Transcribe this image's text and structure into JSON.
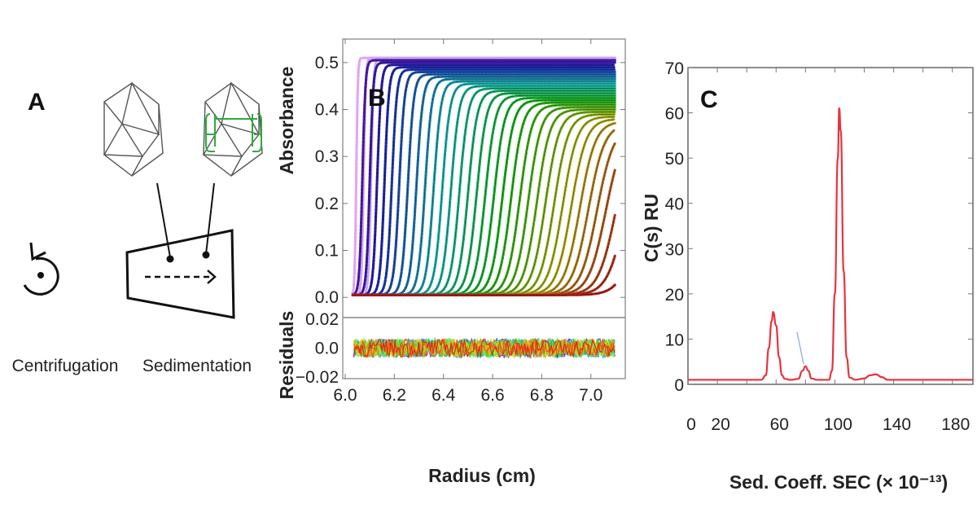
{
  "panel_a": {
    "label": "A",
    "captions": [
      "Centrifugation",
      "Sedimentation"
    ],
    "icons": [
      "rotation-icon",
      "icosahedron-capsid-empty-icon",
      "icosahedron-capsid-genome-icon",
      "sedimentation-cell-icon"
    ],
    "genome_color": "#2eaa3c"
  },
  "chart_data": [
    {
      "type": "line",
      "panel_label": "B",
      "xlabel": "Radius (cm)",
      "ylabel": "Absorbance",
      "xlim": [
        5.99,
        7.14
      ],
      "ylim": [
        -0.043,
        0.55
      ],
      "xticks": [
        "6.0",
        "6.2",
        "6.4",
        "6.6",
        "6.8",
        "7.0"
      ],
      "xtick_values": [
        6.0,
        6.2,
        6.4,
        6.6,
        6.8,
        7.0
      ],
      "yticks": [
        "0.0",
        "0.1",
        "0.2",
        "0.3",
        "0.4",
        "0.5"
      ],
      "ytick_values": [
        0,
        0.1,
        0.2,
        0.3,
        0.4,
        0.5
      ],
      "meniscus_radius": 6.03,
      "cell_bottom_radius": 7.1,
      "baseline": 0.005,
      "color_scale": "rainbow purple-to-red (early to late scans)",
      "scans": [
        [
          6.045,
          0.51
        ],
        [
          6.075,
          0.51
        ],
        [
          6.105,
          0.51
        ],
        [
          6.07,
          0.505
        ],
        [
          6.1,
          0.5
        ],
        [
          6.13,
          0.495
        ],
        [
          6.16,
          0.49
        ],
        [
          6.19,
          0.485
        ],
        [
          6.22,
          0.48
        ],
        [
          6.255,
          0.475
        ],
        [
          6.29,
          0.47
        ],
        [
          6.325,
          0.465
        ],
        [
          6.36,
          0.46
        ],
        [
          6.395,
          0.455
        ],
        [
          6.43,
          0.45
        ],
        [
          6.465,
          0.445
        ],
        [
          6.5,
          0.44
        ],
        [
          6.535,
          0.435
        ],
        [
          6.57,
          0.43
        ],
        [
          6.605,
          0.425
        ],
        [
          6.64,
          0.42
        ],
        [
          6.675,
          0.415
        ],
        [
          6.71,
          0.41
        ],
        [
          6.745,
          0.405
        ],
        [
          6.78,
          0.4
        ],
        [
          6.815,
          0.395
        ],
        [
          6.85,
          0.39
        ],
        [
          6.885,
          0.385
        ],
        [
          6.92,
          0.38
        ],
        [
          6.955,
          0.375
        ],
        [
          6.99,
          0.37
        ],
        [
          7.025,
          0.365
        ],
        [
          7.06,
          0.36
        ],
        [
          7.1,
          0.355
        ],
        [
          7.14,
          0.35
        ],
        [
          7.2,
          0.35
        ]
      ],
      "residuals": {
        "ylabel": "Residuals",
        "ylim": [
          -0.021,
          0.021
        ],
        "yticks": [
          "0.02",
          "0.0",
          "−0.02"
        ],
        "ytick_values": [
          0.02,
          0,
          -0.02
        ],
        "noise_amplitude": 0.008
      }
    },
    {
      "type": "line",
      "panel_label": "C",
      "xlabel": "Sed. Coeff. SEC (× 10⁻¹³)",
      "ylabel": "C(s) RU",
      "xlim": [
        0,
        194
      ],
      "ylim": [
        0,
        70
      ],
      "xticks": [
        "0",
        "20",
        "60",
        "100",
        "140",
        "180"
      ],
      "xtick_values": [
        0,
        20,
        60,
        100,
        140,
        180
      ],
      "yticks": [
        "0",
        "10",
        "20",
        "30",
        "40",
        "50",
        "60",
        "70"
      ],
      "ytick_values": [
        0,
        10,
        20,
        30,
        40,
        50,
        60,
        70
      ],
      "series_color": "#e8323c",
      "annotation_color": "#9bb4e0",
      "x": [
        0,
        20,
        40,
        50,
        53,
        55,
        57,
        58,
        60,
        62,
        64,
        66,
        70,
        75,
        78,
        80,
        82,
        84,
        88,
        96,
        98,
        100,
        102,
        103,
        104,
        106,
        108,
        110,
        114,
        120,
        124,
        128,
        132,
        136,
        160,
        194
      ],
      "y": [
        1,
        1,
        1,
        1,
        2,
        8,
        14,
        16,
        13,
        6,
        2,
        1.2,
        1,
        1.2,
        3,
        4,
        3,
        1.3,
        1,
        1,
        3,
        20,
        50,
        61,
        56,
        25,
        6,
        1.5,
        1,
        1.3,
        2,
        2.2,
        1.6,
        1,
        1,
        1
      ]
    }
  ]
}
